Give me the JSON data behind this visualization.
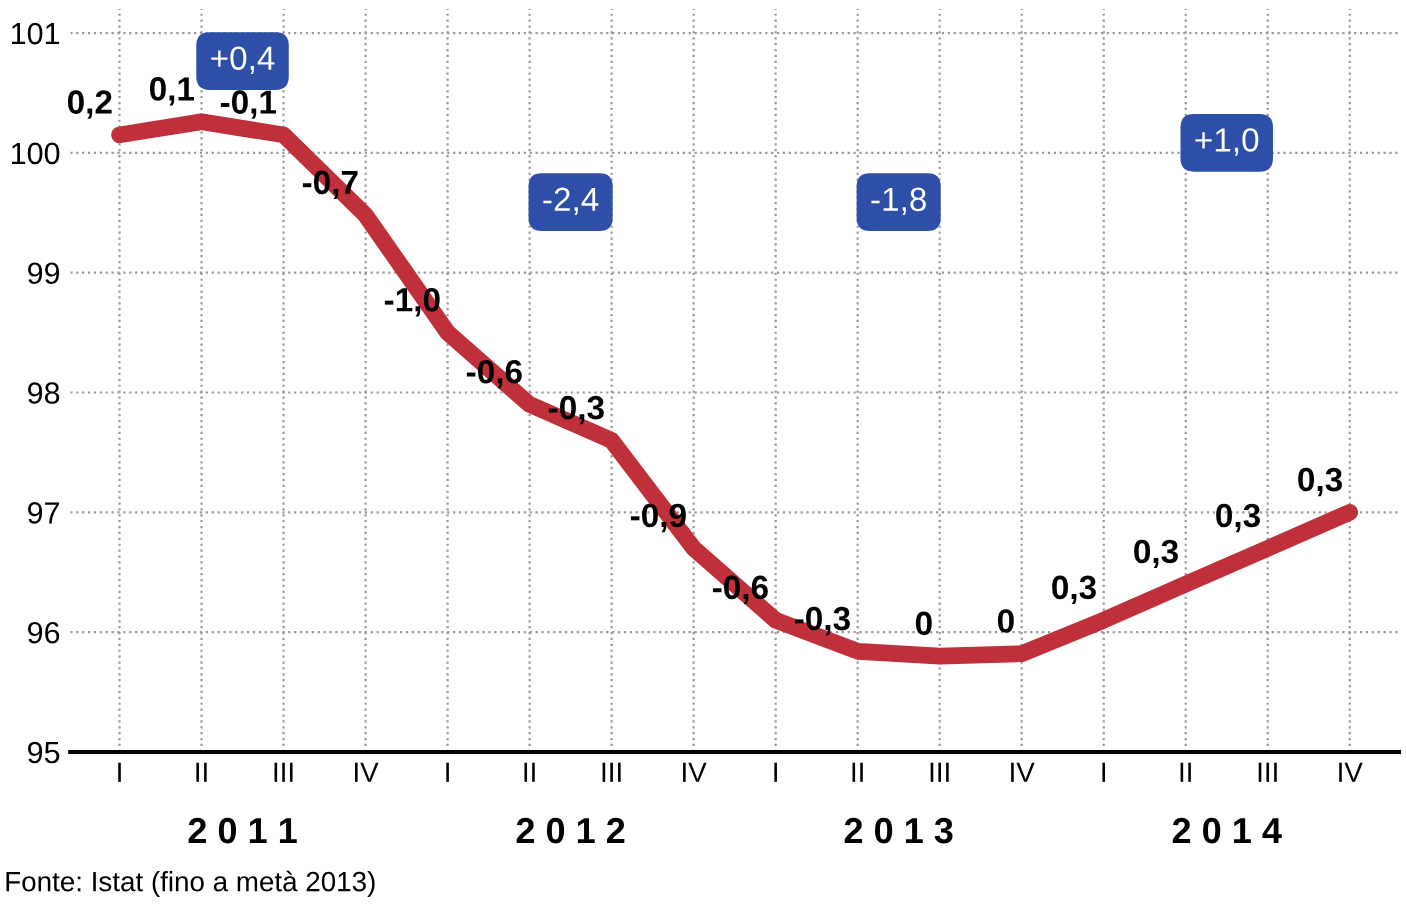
{
  "chart_data": {
    "type": "line",
    "categories": [
      "I",
      "II",
      "III",
      "IV",
      "I",
      "II",
      "III",
      "IV",
      "I",
      "II",
      "III",
      "IV",
      "I",
      "II",
      "III",
      "IV"
    ],
    "series": [
      {
        "color": "#c0303a",
        "values": [
          100.15,
          100.26,
          100.15,
          99.48,
          98.5,
          97.9,
          97.6,
          96.7,
          96.1,
          95.84,
          95.8,
          95.82,
          96.1,
          96.4,
          96.7,
          97.0
        ]
      }
    ],
    "ylim": [
      95,
      101.2
    ],
    "yticks": [
      95,
      96,
      97,
      98,
      99,
      100,
      101
    ],
    "grid": true,
    "marker": "none",
    "line_style": "solid",
    "annotations": [
      "0,2",
      "0,1",
      "-0,1",
      "-0,7",
      "-1,0",
      "-0,6",
      "-0,3",
      "-0,9",
      "-0,6",
      "-0,3",
      "0",
      "0",
      "0,3",
      "0,3",
      "0,3",
      "0,3",
      "+0,4",
      "-2,4",
      "-1,8",
      "+1,0",
      "2 0 1 1",
      "2 0 1 2",
      "2 0 1 3",
      "2 0 1 4",
      "Fonte: Istat (fino a metà 2013)"
    ]
  }
}
